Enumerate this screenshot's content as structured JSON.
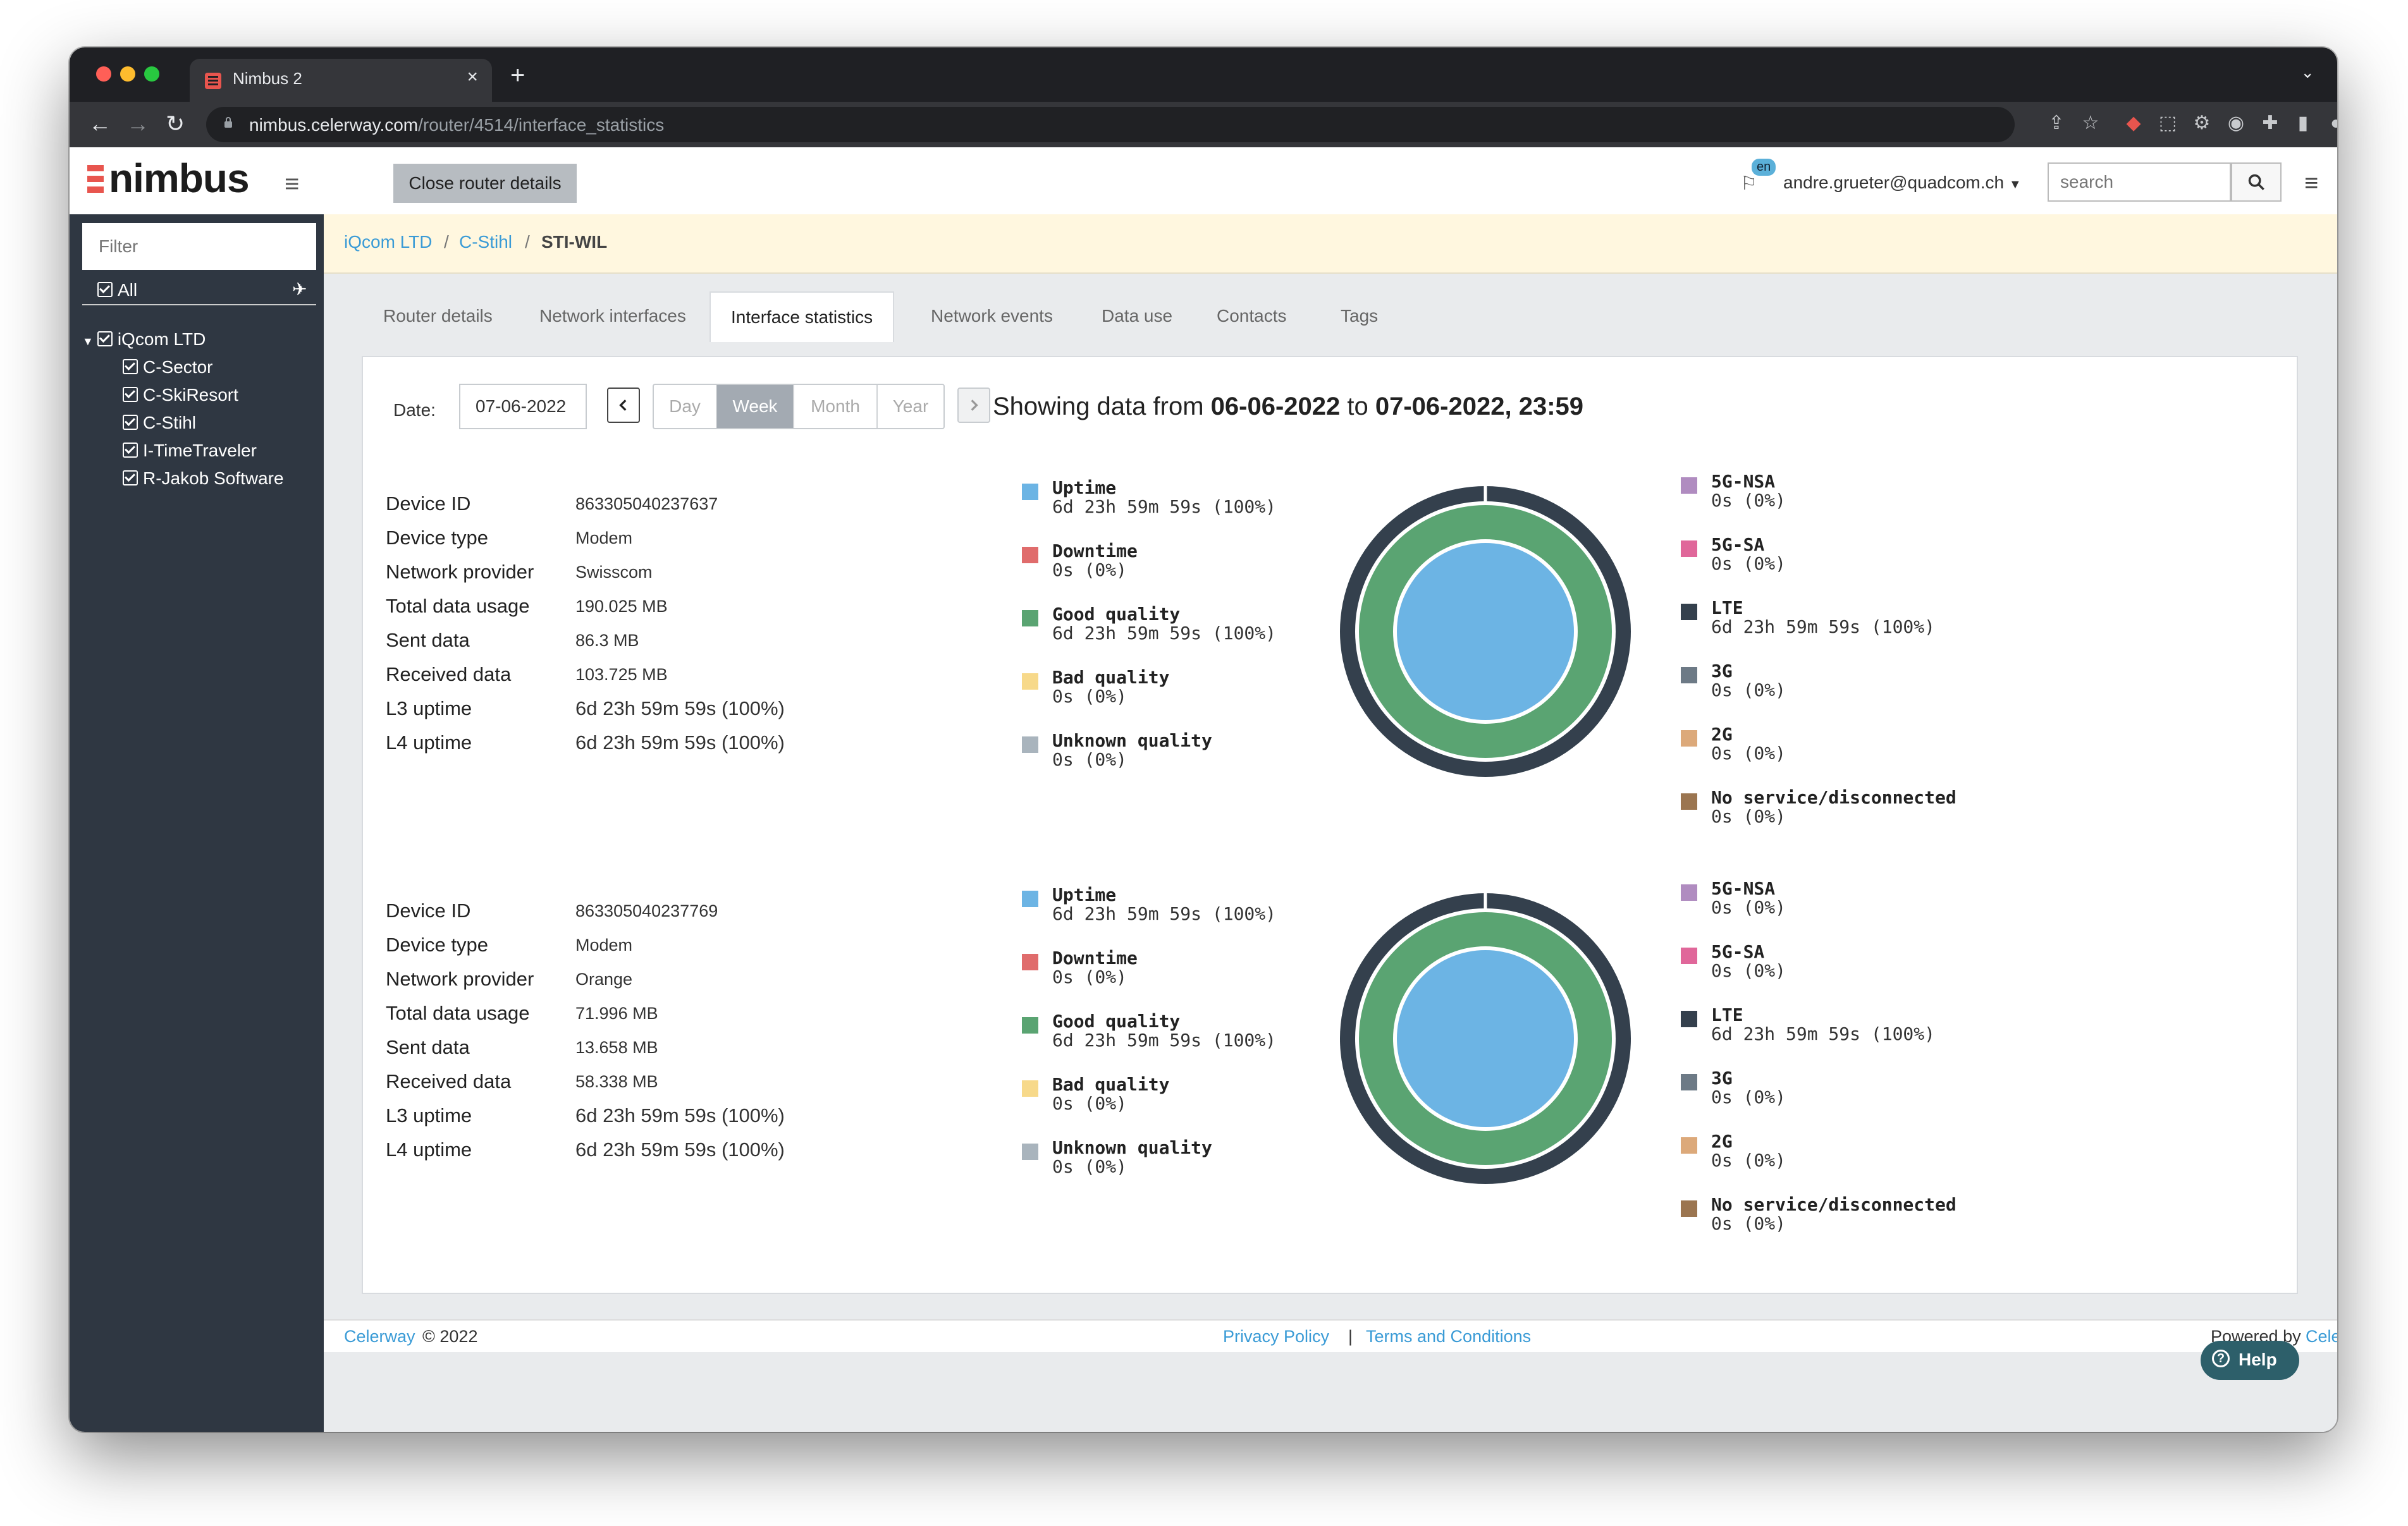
{
  "browser": {
    "tab_title": "Nimbus 2",
    "url_host": "nimbus.celerway.com",
    "url_path": "/router/4514/interface_statistics"
  },
  "header": {
    "logo": "nimbus",
    "close_router_label": "Close router details",
    "language": "en",
    "user": "andre.grueter@quadcom.ch",
    "search_placeholder": "search"
  },
  "sidebar": {
    "filter_placeholder": "Filter",
    "all_label": "All",
    "tree_root": "iQcom LTD",
    "items": [
      "C-Sector",
      "C-SkiResort",
      "C-Stihl",
      "I-TimeTraveler",
      "R-Jakob Software"
    ]
  },
  "breadcrumb": [
    "iQcom LTD",
    "C-Stihl",
    "STI-WIL"
  ],
  "tabs": [
    "Router details",
    "Network interfaces",
    "Interface statistics",
    "Network events",
    "Data use",
    "Contacts",
    "Tags"
  ],
  "active_tab": "Interface statistics",
  "date_controls": {
    "label": "Date:",
    "date_value": "07-06-2022",
    "periods": [
      "Day",
      "Week",
      "Month",
      "Year"
    ],
    "active_period": "Week",
    "showing_prefix": "Showing data from",
    "from": "06-06-2022",
    "to_word": "to",
    "to": "07-06-2022, 23:59"
  },
  "field_labels": [
    "Device ID",
    "Device type",
    "Network provider",
    "Total data usage",
    "Sent data",
    "Received data",
    "L3 uptime",
    "L4 uptime"
  ],
  "devices": [
    {
      "values": [
        "863305040237637",
        "Modem",
        "Swisscom",
        "190.025 MB",
        "86.3 MB",
        "103.725 MB",
        "6d 23h 59m 59s (100%)",
        "6d 23h 59m 59s (100%)"
      ],
      "status_legend": [
        {
          "title": "Uptime",
          "value": "6d 23h 59m 59s (100%)"
        },
        {
          "title": "Downtime",
          "value": "0s (0%)"
        },
        {
          "title": "Good quality",
          "value": "6d 23h 59m 59s (100%)"
        },
        {
          "title": "Bad quality",
          "value": "0s (0%)"
        },
        {
          "title": "Unknown quality",
          "value": "0s (0%)"
        }
      ],
      "tech_legend": [
        {
          "title": "5G-NSA",
          "value": "0s (0%)"
        },
        {
          "title": "5G-SA",
          "value": "0s (0%)"
        },
        {
          "title": "LTE",
          "value": "6d 23h 59m 59s (100%)"
        },
        {
          "title": "3G",
          "value": "0s (0%)"
        },
        {
          "title": "2G",
          "value": "0s (0%)"
        },
        {
          "title": "No service/disconnected",
          "value": "0s (0%)"
        }
      ]
    },
    {
      "values": [
        "863305040237769",
        "Modem",
        "Orange",
        "71.996 MB",
        "13.658 MB",
        "58.338 MB",
        "6d 23h 59m 59s (100%)",
        "6d 23h 59m 59s (100%)"
      ],
      "status_legend": [
        {
          "title": "Uptime",
          "value": "6d 23h 59m 59s (100%)"
        },
        {
          "title": "Downtime",
          "value": "0s (0%)"
        },
        {
          "title": "Good quality",
          "value": "6d 23h 59m 59s (100%)"
        },
        {
          "title": "Bad quality",
          "value": "0s (0%)"
        },
        {
          "title": "Unknown quality",
          "value": "0s (0%)"
        }
      ],
      "tech_legend": [
        {
          "title": "5G-NSA",
          "value": "0s (0%)"
        },
        {
          "title": "5G-SA",
          "value": "0s (0%)"
        },
        {
          "title": "LTE",
          "value": "6d 23h 59m 59s (100%)"
        },
        {
          "title": "3G",
          "value": "0s (0%)"
        },
        {
          "title": "2G",
          "value": "0s (0%)"
        },
        {
          "title": "No service/disconnected",
          "value": "0s (0%)"
        }
      ]
    }
  ],
  "colors": {
    "uptime": "#6cb4e4",
    "downtime": "#e06c6c",
    "good": "#5aa472",
    "bad": "#f7d98a",
    "unknown": "#a9b4bd",
    "nsa": "#b08cc0",
    "sa": "#e0679a",
    "lte": "#34404d",
    "g3": "#6d7a86",
    "g2": "#dca97a",
    "noservice": "#9b7550",
    "accent": "#3a9bd6"
  },
  "footer": {
    "brand": "Celerway",
    "copyright": "© 2022",
    "privacy": "Privacy Policy",
    "separator": "|",
    "terms": "Terms and Conditions",
    "powered_by": "Powered by",
    "powered_brand": "Celerway"
  },
  "help_label": "Help"
}
